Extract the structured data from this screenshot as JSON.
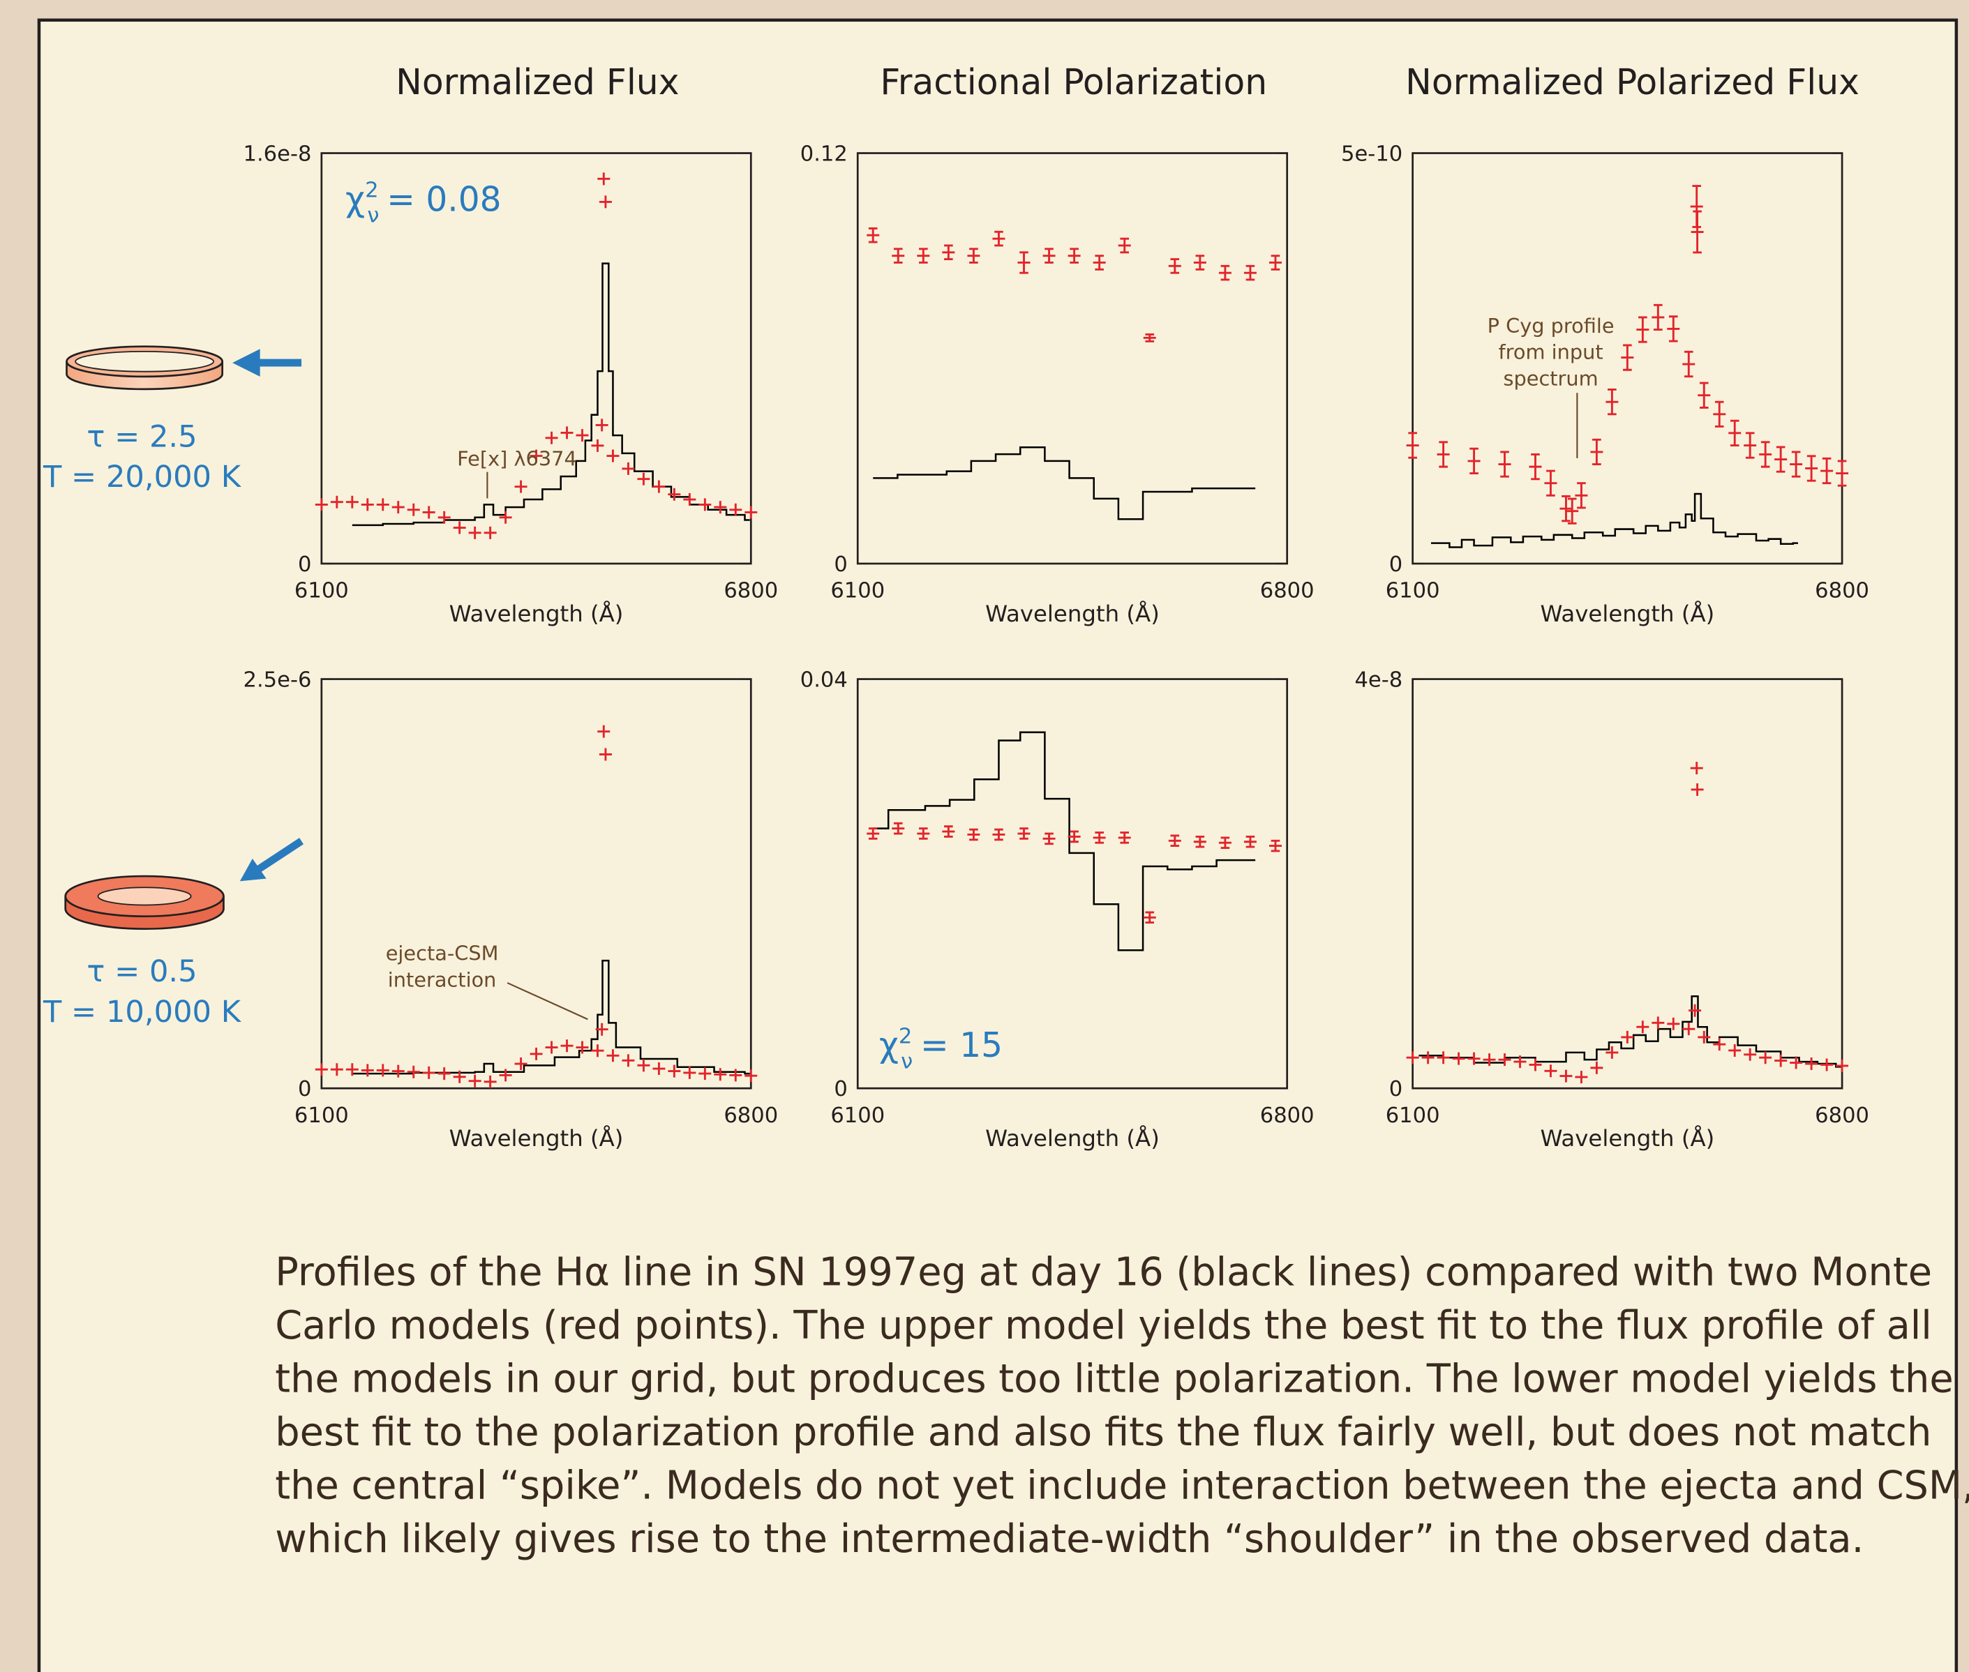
{
  "column_titles": [
    "Normalized Flux",
    "Fractional Polarization",
    "Normalized Polarized Flux"
  ],
  "models": [
    {
      "tau": "τ = 2.5",
      "temperature": "T = 20,000 K"
    },
    {
      "tau": "τ = 0.5",
      "temperature": "T = 10,000 K"
    }
  ],
  "caption": [
    "Profiles of the Hα line in SN 1997eg at day 16 (black lines) compared with two Monte",
    "Carlo models  (red points). The upper model yields the best fit to the flux profile of all",
    "the models in our grid, but produces too little polarization.  The lower model yields the",
    "best fit to the polarization profile and also fits the flux fairly well, but does not match",
    "the central “spike”.  Models do not yet include interaction between the ejecta and CSM,",
    "which likely gives rise to the intermediate-width “shoulder” in the observed data."
  ],
  "chart_data": [
    {
      "type": "line",
      "xlabel": "Wavelength (Å)",
      "xlim": [
        6100,
        6800
      ],
      "xticks": [
        6100,
        6800
      ],
      "ylim": [
        0,
        1.6e-08
      ],
      "yticks": [
        0,
        {
          "value": 1.6e-08,
          "label": "1.6e-8"
        }
      ],
      "annotations": [
        {
          "symbol": "χ",
          "sup": "2",
          "sub": "ν",
          "text": "= 0.08"
        },
        {
          "lines": [
            "Fe[x] λ6374"
          ]
        }
      ],
      "series": [
        {
          "style": "step",
          "color": "#000000",
          "x": [
            6150,
            6200,
            6250,
            6300,
            6350,
            6365,
            6380,
            6400,
            6430,
            6460,
            6490,
            6515,
            6530,
            6540,
            6550,
            6558,
            6568,
            6575,
            6590,
            6610,
            6640,
            6670,
            6700,
            6730,
            6760,
            6790
          ],
          "values": [
            1.5e-09,
            1.55e-09,
            1.6e-09,
            1.7e-09,
            1.8e-09,
            2.3e-09,
            1.9e-09,
            2.2e-09,
            2.5e-09,
            2.9e-09,
            3.4e-09,
            4e-09,
            4.8e-09,
            5.8e-09,
            7.5e-09,
            1.17e-08,
            7.5e-09,
            5e-09,
            4.3e-09,
            3.6e-09,
            3e-09,
            2.6e-09,
            2.3e-09,
            2.1e-09,
            1.9e-09,
            1.7e-09
          ]
        },
        {
          "style": "points",
          "color": "#e3242b",
          "x": [
            6100,
            6125,
            6150,
            6175,
            6200,
            6225,
            6250,
            6275,
            6300,
            6325,
            6350,
            6375,
            6400,
            6425,
            6450,
            6475,
            6500,
            6525,
            6550,
            6575,
            6600,
            6625,
            6650,
            6675,
            6700,
            6725,
            6750,
            6775,
            6800,
            6560,
            6563,
            6557
          ],
          "values": [
            2.3e-09,
            2.4e-09,
            2.4e-09,
            2.3e-09,
            2.3e-09,
            2.2e-09,
            2.1e-09,
            2e-09,
            1.8e-09,
            1.4e-09,
            1.2e-09,
            1.2e-09,
            1.8e-09,
            3e-09,
            4.2e-09,
            4.9e-09,
            5.1e-09,
            5e-09,
            4.6e-09,
            4.2e-09,
            3.7e-09,
            3.3e-09,
            3e-09,
            2.7e-09,
            2.5e-09,
            2.3e-09,
            2.2e-09,
            2.1e-09,
            2e-09,
            1.5e-08,
            1.41e-08,
            5.4e-09
          ]
        }
      ]
    },
    {
      "type": "line",
      "xlabel": "Wavelength (Å)",
      "xlim": [
        6100,
        6800
      ],
      "xticks": [
        6100,
        6800
      ],
      "ylim": [
        0,
        0.12
      ],
      "yticks": [
        0,
        0.12
      ],
      "series": [
        {
          "style": "step",
          "color": "#000000",
          "x": [
            6125,
            6165,
            6205,
            6245,
            6285,
            6325,
            6365,
            6405,
            6445,
            6485,
            6525,
            6565,
            6605,
            6645,
            6685,
            6740
          ],
          "values": [
            0.025,
            0.026,
            0.026,
            0.027,
            0.03,
            0.032,
            0.034,
            0.03,
            0.025,
            0.019,
            0.013,
            0.021,
            0.021,
            0.022,
            0.022,
            0.022
          ]
        },
        {
          "style": "points",
          "color": "#e3242b",
          "x": [
            6125,
            6166,
            6207,
            6248,
            6289,
            6330,
            6371,
            6412,
            6453,
            6494,
            6535,
            6576,
            6617,
            6658,
            6699,
            6740,
            6781
          ],
          "values": [
            0.096,
            0.09,
            0.09,
            0.091,
            0.09,
            0.095,
            0.088,
            0.09,
            0.09,
            0.088,
            0.093,
            0.066,
            0.087,
            0.088,
            0.085,
            0.085,
            0.088
          ],
          "errors": [
            0.002,
            0.002,
            0.002,
            0.002,
            0.002,
            0.002,
            0.003,
            0.002,
            0.002,
            0.002,
            0.002,
            0.001,
            0.002,
            0.002,
            0.002,
            0.002,
            0.002
          ]
        }
      ]
    },
    {
      "type": "line",
      "xlabel": "Wavelength (Å)",
      "xlim": [
        6100,
        6800
      ],
      "xticks": [
        6100,
        6800
      ],
      "ylim": [
        0,
        5e-10
      ],
      "yticks": [
        0,
        {
          "value": 5e-10,
          "label": "5e-10"
        }
      ],
      "annotations": [
        {
          "lines": [
            "P Cyg profile",
            "from input",
            "spectrum"
          ]
        }
      ],
      "series": [
        {
          "style": "step",
          "color": "#000000",
          "x": [
            6130,
            6160,
            6180,
            6200,
            6230,
            6260,
            6280,
            6310,
            6330,
            6360,
            6380,
            6410,
            6430,
            6460,
            6480,
            6500,
            6520,
            6535,
            6545,
            6555,
            6560,
            6570,
            6590,
            6610,
            6630,
            6660,
            6680,
            6700,
            6720
          ],
          "values": [
            2.5e-11,
            2e-11,
            2.9e-11,
            2.2e-11,
            3.2e-11,
            2.6e-11,
            3.3e-11,
            2.9e-11,
            3.5e-11,
            3.1e-11,
            3.8e-11,
            3.4e-11,
            4.2e-11,
            3.7e-11,
            4.6e-11,
            4e-11,
            5e-11,
            4.4e-11,
            6e-11,
            5.2e-11,
            8.5e-11,
            5.5e-11,
            3.8e-11,
            3.3e-11,
            3.6e-11,
            2.8e-11,
            3e-11,
            2.4e-11,
            2.5e-11
          ]
        },
        {
          "style": "points",
          "color": "#e3242b",
          "x": [
            6100,
            6150,
            6200,
            6250,
            6300,
            6325,
            6350,
            6360,
            6375,
            6400,
            6425,
            6450,
            6475,
            6500,
            6525,
            6550,
            6575,
            6600,
            6625,
            6650,
            6675,
            6700,
            6725,
            6750,
            6775,
            6800,
            6563,
            6564
          ],
          "values": [
            1.44e-10,
            1.33e-10,
            1.25e-10,
            1.21e-10,
            1.18e-10,
            9.8e-11,
            6.7e-11,
            6.4e-11,
            8.3e-11,
            1.36e-10,
            1.97e-10,
            2.51e-10,
            2.85e-10,
            3e-10,
            2.86e-10,
            2.43e-10,
            2.05e-10,
            1.82e-10,
            1.59e-10,
            1.44e-10,
            1.33e-10,
            1.27e-10,
            1.21e-10,
            1.16e-10,
            1.13e-10,
            1.1e-10,
            4.35e-10,
            4.04e-10
          ],
          "errors": [
            1.5e-11,
            1.5e-11,
            1.5e-11,
            1.5e-11,
            1.5e-11,
            1.5e-11,
            1.5e-11,
            1.5e-11,
            1.5e-11,
            1.5e-11,
            1.5e-11,
            1.5e-11,
            1.5e-11,
            1.5e-11,
            1.5e-11,
            1.5e-11,
            1.5e-11,
            1.5e-11,
            1.5e-11,
            1.5e-11,
            1.5e-11,
            1.5e-11,
            1.5e-11,
            1.5e-11,
            1.5e-11,
            1.5e-11,
            2.5e-11,
            2.5e-11
          ]
        }
      ]
    },
    {
      "type": "line",
      "xlabel": "Wavelength (Å)",
      "xlim": [
        6100,
        6800
      ],
      "xticks": [
        6100,
        6800
      ],
      "ylim": [
        0,
        2.5e-06
      ],
      "yticks": [
        0,
        {
          "value": 2.5e-06,
          "label": "2.5e-6"
        }
      ],
      "annotations": [
        {
          "lines": [
            "ejecta-CSM",
            "interaction"
          ]
        }
      ],
      "series": [
        {
          "style": "step",
          "color": "#000000",
          "x": [
            6150,
            6250,
            6350,
            6365,
            6380,
            6430,
            6480,
            6520,
            6540,
            6550,
            6558,
            6568,
            6580,
            6620,
            6680,
            6740,
            6790
          ],
          "values": [
            9e-08,
            9.5e-08,
            1e-07,
            1.5e-07,
            1e-07,
            1.4e-07,
            1.9e-07,
            2.3e-07,
            3e-07,
            4.5e-07,
            7.8e-07,
            4e-07,
            2.5e-07,
            1.8e-07,
            1.3e-07,
            1e-07,
            9e-08
          ]
        },
        {
          "style": "points",
          "color": "#e3242b",
          "x": [
            6100,
            6125,
            6150,
            6175,
            6200,
            6225,
            6250,
            6275,
            6300,
            6325,
            6350,
            6375,
            6400,
            6425,
            6450,
            6475,
            6500,
            6525,
            6550,
            6575,
            6600,
            6625,
            6650,
            6675,
            6700,
            6725,
            6750,
            6775,
            6800,
            6560,
            6563,
            6557
          ],
          "values": [
            1.15e-07,
            1.15e-07,
            1.15e-07,
            1.1e-07,
            1.1e-07,
            1.05e-07,
            1e-07,
            9.5e-08,
            9e-08,
            7e-08,
            4.5e-08,
            4e-08,
            8e-08,
            1.5e-07,
            2.1e-07,
            2.5e-07,
            2.6e-07,
            2.5e-07,
            2.3e-07,
            2e-07,
            1.7e-07,
            1.4e-07,
            1.2e-07,
            1.05e-07,
            9.5e-08,
            9e-08,
            8.5e-08,
            8e-08,
            7.7e-08,
            2.18e-06,
            2.04e-06,
            3.6e-07
          ]
        }
      ]
    },
    {
      "type": "line",
      "xlabel": "Wavelength (Å)",
      "xlim": [
        6100,
        6800
      ],
      "xticks": [
        6100,
        6800
      ],
      "ylim": [
        0,
        0.04
      ],
      "yticks": [
        0,
        0.04
      ],
      "annotations": [
        {
          "symbol": "χ",
          "sup": "2",
          "sub": "ν",
          "text": "= 15"
        }
      ],
      "series": [
        {
          "style": "step",
          "color": "#000000",
          "x": [
            6125,
            6150,
            6210,
            6250,
            6290,
            6330,
            6365,
            6405,
            6445,
            6485,
            6525,
            6565,
            6605,
            6645,
            6685,
            6740
          ],
          "values": [
            0.0254,
            0.0272,
            0.0276,
            0.0282,
            0.0302,
            0.034,
            0.0348,
            0.0283,
            0.023,
            0.018,
            0.0135,
            0.0217,
            0.0214,
            0.0217,
            0.0223,
            0.0223
          ]
        },
        {
          "style": "points",
          "color": "#e3242b",
          "x": [
            6125,
            6166,
            6207,
            6248,
            6289,
            6330,
            6371,
            6412,
            6453,
            6494,
            6535,
            6576,
            6617,
            6658,
            6699,
            6740,
            6781
          ],
          "values": [
            0.0249,
            0.0254,
            0.0249,
            0.0251,
            0.0248,
            0.0248,
            0.0249,
            0.0244,
            0.0246,
            0.0245,
            0.0245,
            0.0167,
            0.0242,
            0.0241,
            0.024,
            0.0241,
            0.0237
          ],
          "errors": [
            0.0005,
            0.0005,
            0.0005,
            0.0005,
            0.0005,
            0.0005,
            0.0005,
            0.0005,
            0.0005,
            0.0005,
            0.0005,
            0.0005,
            0.0005,
            0.0005,
            0.0005,
            0.0005,
            0.0005
          ]
        }
      ]
    },
    {
      "type": "line",
      "xlabel": "Wavelength (Å)",
      "xlim": [
        6100,
        6800
      ],
      "xticks": [
        6100,
        6800
      ],
      "ylim": [
        0,
        4e-08
      ],
      "yticks": [
        0,
        {
          "value": 4e-08,
          "label": "4e-8"
        }
      ],
      "series": [
        {
          "style": "step",
          "color": "#000000",
          "x": [
            6110,
            6150,
            6200,
            6250,
            6300,
            6350,
            6380,
            6400,
            6420,
            6440,
            6460,
            6480,
            6500,
            6520,
            6540,
            6555,
            6565,
            6580,
            6600,
            6630,
            6660,
            6700,
            6730,
            6760,
            6790
          ],
          "values": [
            3.2e-09,
            3e-09,
            2.5e-09,
            3e-09,
            2.6e-09,
            3.5e-09,
            2.8e-09,
            3.8e-09,
            4.5e-09,
            3.9e-09,
            5.2e-09,
            4.6e-09,
            5.8e-09,
            5e-09,
            6.5e-09,
            9e-09,
            6e-09,
            4.5e-09,
            5e-09,
            4.2e-09,
            3.6e-09,
            3e-09,
            2.6e-09,
            2.4e-09,
            2.1e-09
          ]
        },
        {
          "style": "points",
          "color": "#e3242b",
          "x": [
            6100,
            6125,
            6150,
            6175,
            6200,
            6225,
            6250,
            6275,
            6300,
            6325,
            6350,
            6375,
            6400,
            6425,
            6450,
            6475,
            6500,
            6525,
            6550,
            6575,
            6600,
            6625,
            6650,
            6675,
            6700,
            6725,
            6750,
            6775,
            6800,
            6563,
            6564,
            6560
          ],
          "values": [
            3e-09,
            3e-09,
            3e-09,
            2.9e-09,
            2.9e-09,
            2.8e-09,
            2.8e-09,
            2.6e-09,
            2.3e-09,
            1.7e-09,
            1.2e-09,
            1.1e-09,
            2e-09,
            3.5e-09,
            5e-09,
            6e-09,
            6.4e-09,
            6.3e-09,
            5.8e-09,
            5e-09,
            4.3e-09,
            3.7e-09,
            3.3e-09,
            3e-09,
            2.7e-09,
            2.5e-09,
            2.4e-09,
            2.3e-09,
            2.2e-09,
            3.13e-08,
            2.92e-08,
            7.6e-09
          ]
        }
      ]
    }
  ]
}
